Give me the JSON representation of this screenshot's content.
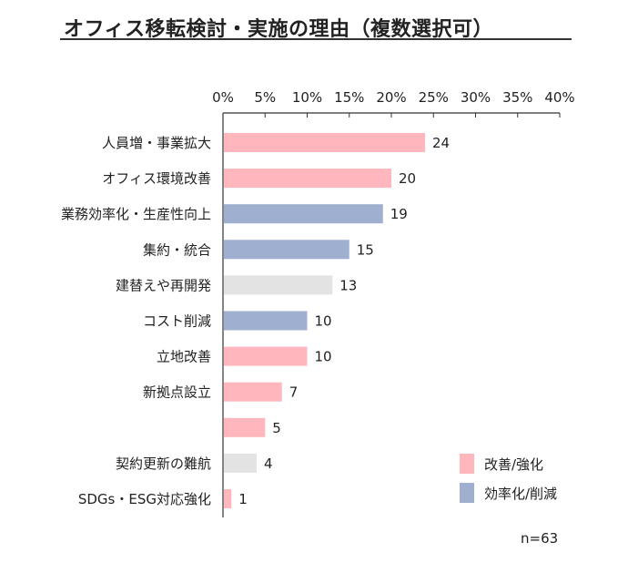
{
  "title": "オフィス移転検討・実施の理由（複数選択可）",
  "note": "n=63",
  "colors": {
    "改善/強化": "#ffb6bc",
    "効率化/削減": "#9eafcf",
    "other": "#e3e3e3",
    "axis": "#333333"
  },
  "chart_data": {
    "type": "bar",
    "orientation": "horizontal",
    "title": "オフィス移転検討・実施の理由（複数選択可）",
    "categories": [
      "人員増・事業拡大",
      "オフィス環境改善",
      "業務効率化・生産性向上",
      "集約・統合",
      "建替えや再開発",
      "コスト削減",
      "立地改善",
      "新拠点設立",
      "",
      "契約更新の難航",
      "SDGs・ESG対応強化"
    ],
    "values": [
      24,
      20,
      19,
      15,
      13,
      10,
      10,
      7,
      5,
      4,
      1
    ],
    "groups": [
      "改善/強化",
      "改善/強化",
      "効率化/削減",
      "効率化/削減",
      "other",
      "効率化/削減",
      "改善/強化",
      "改善/強化",
      "改善/強化",
      "other",
      "改善/強化"
    ],
    "n": 63,
    "x_axis": {
      "min": 0,
      "max": 40,
      "step": 5,
      "unit": "%",
      "position": "top",
      "tick_labels": [
        "0%",
        "5%",
        "10%",
        "15%",
        "20%",
        "25%",
        "30%",
        "35%",
        "40%"
      ]
    },
    "legend": {
      "position": "bottom-right",
      "items": [
        "改善/強化",
        "効率化/削減"
      ]
    },
    "grid": false
  }
}
